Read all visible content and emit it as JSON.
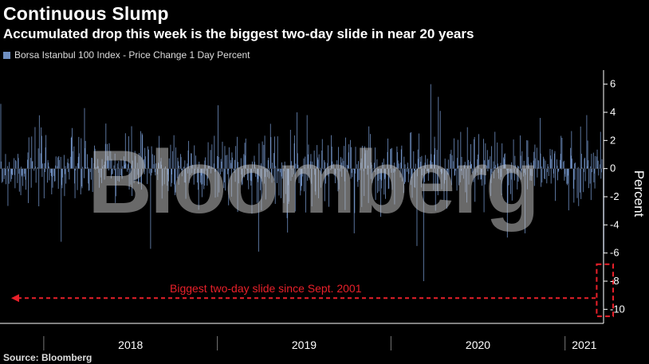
{
  "title": "Continuous Slump",
  "subtitle": "Accumulated drop this week is the biggest two-day slide in near 20 years",
  "legend_label": "Borsa Istanbul 100 Index - Price Change 1 Day Percent",
  "source": "Source: Bloomberg",
  "watermark": "Bloomberg",
  "annotation": "Biggest two-day slide since Sept. 2001",
  "colors": {
    "bars": "#6f8fc1",
    "annotation": "#e8202a",
    "background": "#000000",
    "axis": "#ffffff"
  },
  "chart_data": {
    "type": "bar",
    "x_axis": "date",
    "x_range": [
      "2017-10-01",
      "2021-03-23"
    ],
    "year_labels": [
      "2018",
      "2019",
      "2020",
      "2021"
    ],
    "ylabel": "Percent",
    "ylim": [
      -11,
      7
    ],
    "yticks": [
      6,
      4,
      2,
      0,
      -2,
      -4,
      -6,
      -8,
      -10
    ],
    "y_axis_side": "right",
    "grid": false,
    "legend_position": "top-left",
    "series": [
      {
        "name": "Borsa Istanbul 100 Index - Price Change 1 Day Percent",
        "notable_points": [
          {
            "date": "2018-02-06",
            "value": -5.2
          },
          {
            "date": "2018-08-13",
            "value": -5.7
          },
          {
            "date": "2019-01-02",
            "value": 4.5
          },
          {
            "date": "2019-03-28",
            "value": -5.9
          },
          {
            "date": "2019-07-08",
            "value": 3.8
          },
          {
            "date": "2019-11-15",
            "value": 3.0
          },
          {
            "date": "2020-02-24",
            "value": -5.5
          },
          {
            "date": "2020-03-09",
            "value": -8.0
          },
          {
            "date": "2020-03-24",
            "value": 6.0
          },
          {
            "date": "2020-04-09",
            "value": 5.1
          },
          {
            "date": "2020-09-01",
            "value": -4.9
          },
          {
            "date": "2020-11-09",
            "value": 3.6
          },
          {
            "date": "2021-02-15",
            "value": 3.8
          },
          {
            "date": "2021-03-22",
            "value": -9.8
          },
          {
            "date": "2021-03-23",
            "value": -6.0
          }
        ],
        "noise_std": 1.3,
        "noise_seed": 7
      }
    ],
    "highlight": {
      "dates": [
        "2021-03-22",
        "2021-03-23"
      ],
      "y_range": [
        -10.5,
        -6.8
      ]
    }
  }
}
